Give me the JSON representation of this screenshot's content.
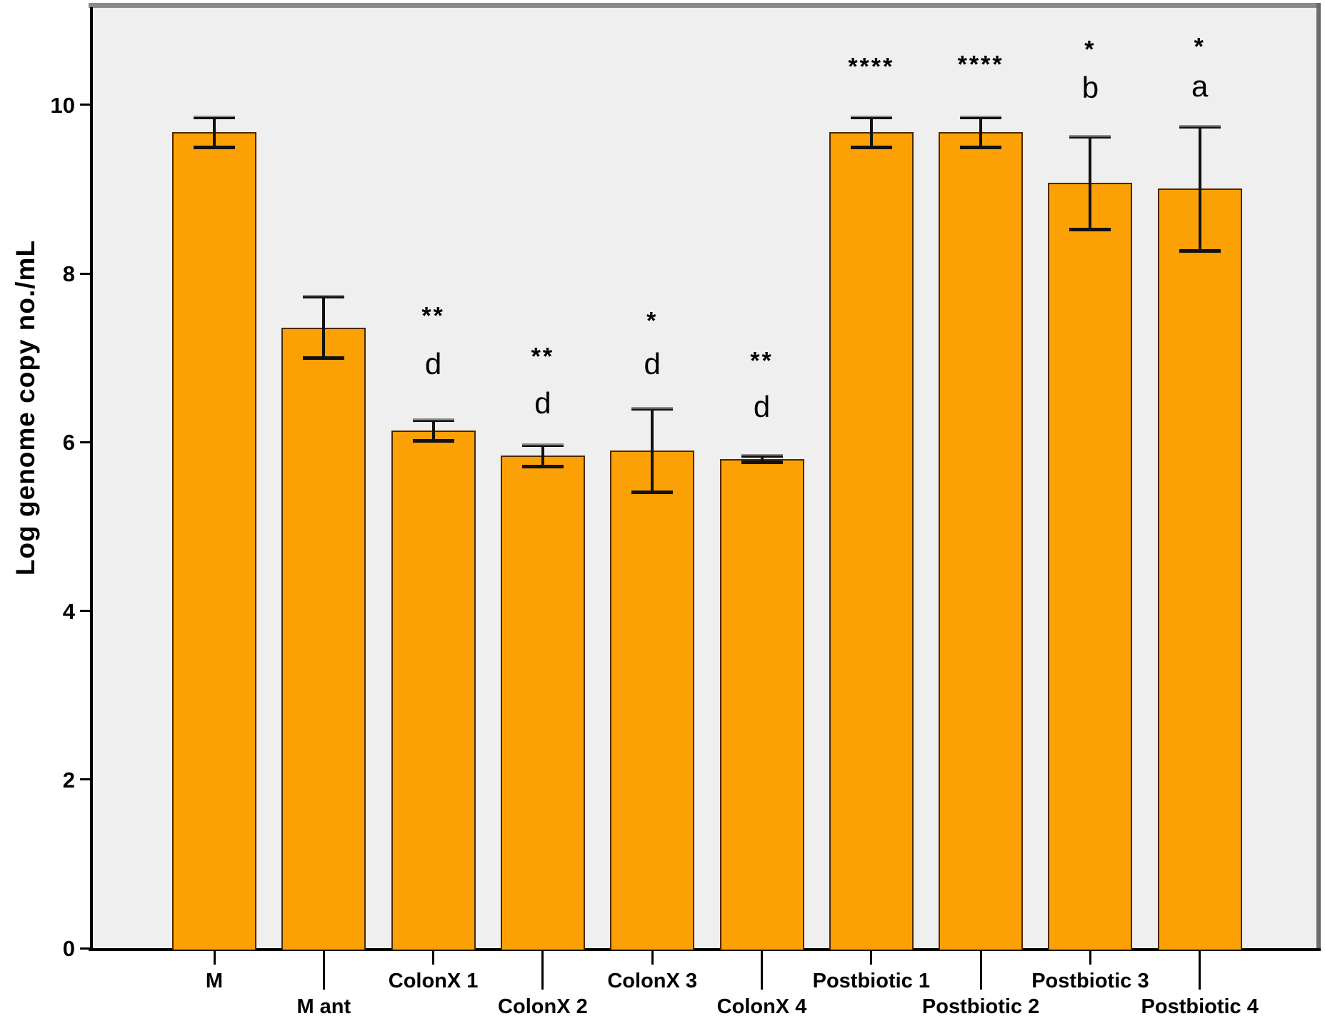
{
  "chart_data": {
    "type": "bar",
    "title": "",
    "xlabel": "",
    "ylabel": "Log genome copy no./mL",
    "ylim": [
      0,
      11.16
    ],
    "yticks": [
      0,
      2,
      4,
      6,
      8,
      10
    ],
    "grid": "off",
    "legend": "none",
    "categories": [
      "M",
      "M ant",
      "ColonX 1",
      "ColonX 2",
      "ColonX 3",
      "ColonX 4",
      "Postbiotic 1",
      "Postbiotic 2",
      "Postbiotic 3",
      "Postbiotic 4"
    ],
    "values": [
      9.68,
      7.36,
      6.14,
      5.84,
      5.9,
      5.8,
      9.68,
      9.68,
      9.08,
      9.01
    ],
    "error_up": [
      0.18,
      0.37,
      0.13,
      0.13,
      0.5,
      0.04,
      0.18,
      0.18,
      0.55,
      0.74
    ],
    "error_down": [
      0.19,
      0.37,
      0.13,
      0.13,
      0.5,
      0.04,
      0.19,
      0.19,
      0.56,
      0.75
    ],
    "annotations": [
      {
        "category": "ColonX 1",
        "stars": "**",
        "stars_y": 7.56,
        "letter": "d",
        "letter_y": 6.93
      },
      {
        "category": "ColonX 2",
        "stars": "**",
        "stars_y": 7.08,
        "letter": "d",
        "letter_y": 6.46
      },
      {
        "category": "ColonX 3",
        "stars": "*",
        "stars_y": 7.5,
        "letter": "d",
        "letter_y": 6.93
      },
      {
        "category": "ColonX 4",
        "stars": "**",
        "stars_y": 7.03,
        "letter": "d",
        "letter_y": 6.42
      },
      {
        "category": "Postbiotic 1",
        "stars": "****",
        "stars_y": 10.52,
        "letter": "",
        "letter_y": null
      },
      {
        "category": "Postbiotic 2",
        "stars": "****",
        "stars_y": 10.54,
        "letter": "",
        "letter_y": null
      },
      {
        "category": "Postbiotic 3",
        "stars": "*",
        "stars_y": 10.72,
        "letter": "b",
        "letter_y": 10.2
      },
      {
        "category": "Postbiotic 4",
        "stars": "*",
        "stars_y": 10.75,
        "letter": "a",
        "letter_y": 10.22
      }
    ],
    "colors": {
      "bar_fill": "#FBA005",
      "bar_border": "#4D2800",
      "plot_bg": "#EFEFEF",
      "page_bg": "#FFFFFF",
      "error": "#111111",
      "error_cap_top_shade": "#8C8C8C",
      "axis": "#000000",
      "frame_top": "#8A8A8A",
      "frame_right": "#6B6B6B",
      "text": "#000000"
    }
  }
}
